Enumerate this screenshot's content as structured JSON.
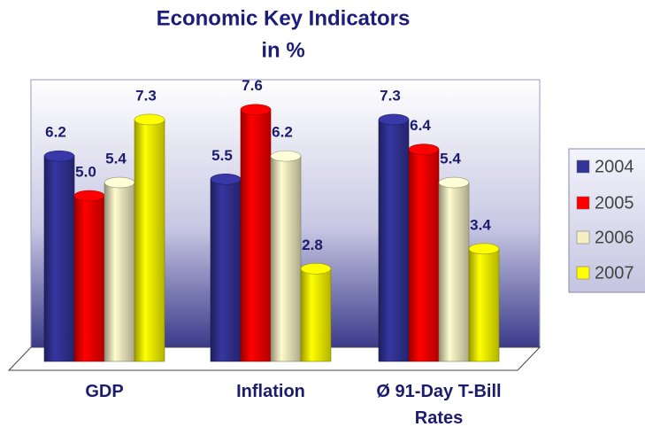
{
  "chart_data": {
    "type": "bar3d",
    "title": "Economic Key Indicators",
    "subtitle": "in %",
    "categories": [
      "GDP",
      "Inflation",
      "Ø 91-Day T-Bill Rates"
    ],
    "series": [
      {
        "name": "2004",
        "color": "#333399",
        "values": [
          6.2,
          5.5,
          7.3
        ],
        "value_labels": [
          "6.2",
          "5.5",
          "7.3"
        ]
      },
      {
        "name": "2005",
        "color": "#ff0000",
        "values": [
          5.0,
          7.6,
          6.4
        ],
        "value_labels": [
          "5.0",
          "7.6",
          "6.4"
        ]
      },
      {
        "name": "2006",
        "color": "#f4f0c4",
        "values": [
          5.4,
          6.2,
          5.4
        ],
        "value_labels": [
          "5.4",
          "6.2",
          "5.4"
        ]
      },
      {
        "name": "2007",
        "color": "#ffff00",
        "values": [
          7.3,
          2.8,
          3.4
        ],
        "value_labels": [
          "7.3",
          "2.8",
          "3.4"
        ]
      }
    ],
    "ylim": [
      0,
      8.5
    ],
    "legend": "right"
  }
}
